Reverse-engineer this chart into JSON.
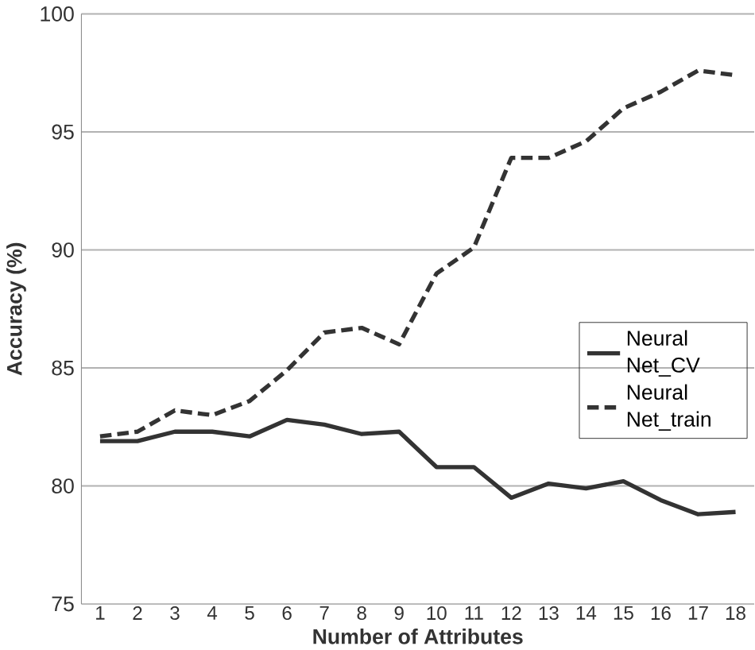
{
  "chart_data": {
    "type": "line",
    "xlabel": "Number of Attributes",
    "ylabel": "Accuracy (%)",
    "categories": [
      "1",
      "2",
      "3",
      "4",
      "5",
      "6",
      "7",
      "8",
      "9",
      "10",
      "11",
      "12",
      "13",
      "14",
      "15",
      "16",
      "17",
      "18"
    ],
    "series": [
      {
        "name": "Neural Net_CV",
        "color": "#333333",
        "line_style": "solid",
        "values": [
          81.9,
          81.9,
          82.3,
          82.3,
          82.1,
          82.8,
          82.6,
          82.2,
          82.3,
          80.8,
          80.8,
          79.5,
          80.1,
          79.9,
          80.2,
          79.4,
          78.8,
          78.9
        ]
      },
      {
        "name": "Neural Net_train",
        "color": "#333333",
        "line_style": "dashed",
        "values": [
          82.1,
          82.3,
          83.2,
          83.0,
          83.6,
          84.9,
          86.5,
          86.7,
          86.0,
          89.0,
          90.1,
          93.9,
          93.9,
          94.6,
          96.0,
          96.7,
          97.6,
          97.4
        ]
      }
    ],
    "ylim": [
      75,
      100
    ],
    "yticks": [
      75,
      80,
      85,
      90,
      95,
      100
    ],
    "grid": "y",
    "legend": "right",
    "marker": "none"
  }
}
